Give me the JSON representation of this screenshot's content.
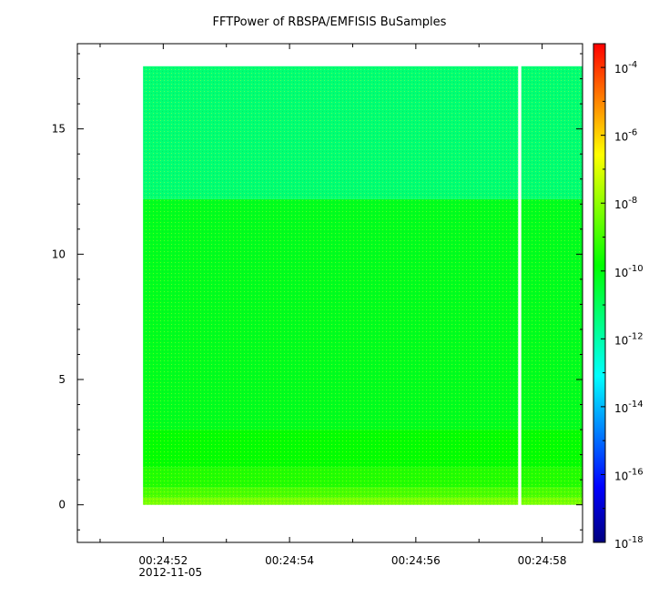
{
  "chart_data": {
    "type": "heatmap",
    "title": "FFTPower of RBSPA/EMFISIS  BuSamples",
    "xlabel": "",
    "ylabel": "",
    "xlim": [
      "00:24:50.64",
      "00:24:58.64"
    ],
    "ylim": [
      -1.5,
      18.4
    ],
    "x_ticks": [
      {
        "value": "00:24:52",
        "label": "00:24:52",
        "sublabel": "2012-11-05"
      },
      {
        "value": "00:24:54",
        "label": "00:24:54",
        "sublabel": ""
      },
      {
        "value": "00:24:56",
        "label": "00:24:56",
        "sublabel": ""
      },
      {
        "value": "00:24:58",
        "label": "00:24:58",
        "sublabel": ""
      }
    ],
    "y_ticks": [
      {
        "value": 0,
        "label": "0"
      },
      {
        "value": 5,
        "label": "5"
      },
      {
        "value": 10,
        "label": "10"
      },
      {
        "value": 15,
        "label": "15"
      }
    ],
    "data_extent": {
      "x": [
        "00:24:51.68",
        "00:24:58.64"
      ],
      "y": [
        0,
        17.5
      ]
    },
    "data_gap": {
      "x": [
        "00:24:57.62",
        "00:24:57.67"
      ]
    },
    "bands": [
      {
        "y": [
          0,
          0.3
        ],
        "level": -8.3
      },
      {
        "y": [
          0.3,
          0.7
        ],
        "level": -8.9
      },
      {
        "y": [
          0.7,
          1.5
        ],
        "level": -9.4
      },
      {
        "y": [
          1.5,
          3
        ],
        "level": -9.8
      },
      {
        "y": [
          3,
          12.2
        ],
        "level": -10.2
      },
      {
        "y": [
          12.2,
          17.5
        ],
        "level": -11.3
      }
    ],
    "colorbar": {
      "scale": "log",
      "range": [
        -18,
        -3.3
      ],
      "colors": [
        "#00007f",
        "#0000ff",
        "#0080ff",
        "#00ffff",
        "#00ff80",
        "#00ff00",
        "#80ff00",
        "#ffff00",
        "#ff8000",
        "#ff0000"
      ],
      "ticks": [
        {
          "exp": -4,
          "base": "10",
          "sup": "-4"
        },
        {
          "exp": -6,
          "base": "10",
          "sup": "-6"
        },
        {
          "exp": -8,
          "base": "10",
          "sup": "-8"
        },
        {
          "exp": -10,
          "base": "10",
          "sup": "-10"
        },
        {
          "exp": -12,
          "base": "10",
          "sup": "-12"
        },
        {
          "exp": -14,
          "base": "10",
          "sup": "-14"
        },
        {
          "exp": -16,
          "base": "10",
          "sup": "-16"
        },
        {
          "exp": -18,
          "base": "10",
          "sup": "-18"
        }
      ]
    }
  }
}
